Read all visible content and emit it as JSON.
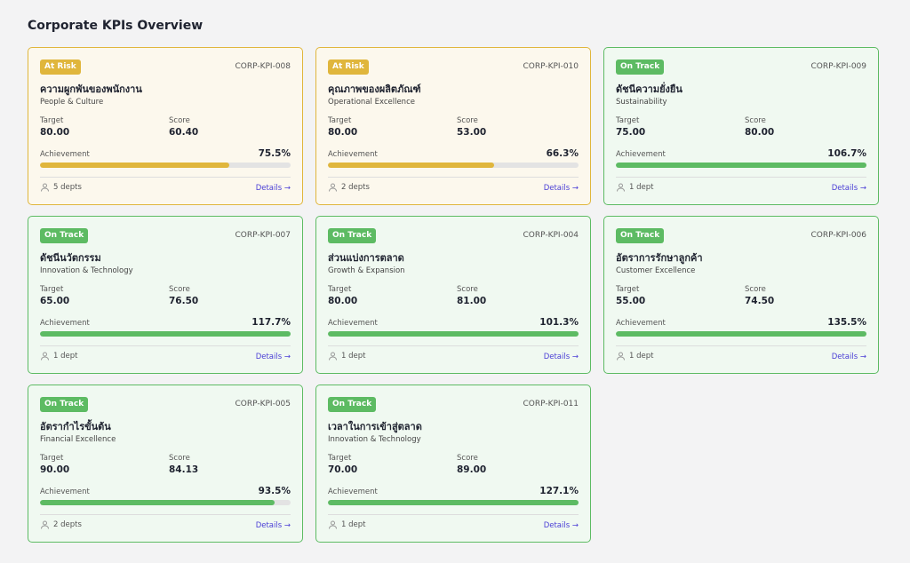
{
  "header": {
    "title": "Corporate KPIs Overview"
  },
  "labels": {
    "target": "Target",
    "score": "Score",
    "achievement": "Achievement",
    "details": "Details →"
  },
  "cards": [
    {
      "status": "At Risk",
      "color": "#e0b63c",
      "code": "CORP-KPI-008",
      "name": "ความผูกพันของพนักงาน",
      "category": "People & Culture",
      "target": "80.00",
      "score": "60.40",
      "achievement": {
        "value": 75.5,
        "label": "75.5%"
      },
      "departments": "5 depts"
    },
    {
      "status": "At Risk",
      "color": "#e0b63c",
      "code": "CORP-KPI-010",
      "name": "คุณภาพของผลิตภัณฑ์",
      "category": "Operational Excellence",
      "target": "80.00",
      "score": "53.00",
      "achievement": {
        "value": 66.3,
        "label": "66.3%"
      },
      "departments": "2 depts"
    },
    {
      "status": "On Track",
      "color": "#5dbb63",
      "code": "CORP-KPI-009",
      "name": "ดัชนีความยั่งยืน",
      "category": "Sustainability",
      "target": "75.00",
      "score": "80.00",
      "achievement": {
        "value": 106.7,
        "label": "106.7%"
      },
      "departments": "1 dept"
    },
    {
      "status": "On Track",
      "color": "#5dbb63",
      "code": "CORP-KPI-007",
      "name": "ดัชนีนวัตกรรม",
      "category": "Innovation & Technology",
      "target": "65.00",
      "score": "76.50",
      "achievement": {
        "value": 117.7,
        "label": "117.7%"
      },
      "departments": "1 dept"
    },
    {
      "status": "On Track",
      "color": "#5dbb63",
      "code": "CORP-KPI-004",
      "name": "ส่วนแบ่งการตลาด",
      "category": "Growth & Expansion",
      "target": "80.00",
      "score": "81.00",
      "achievement": {
        "value": 101.3,
        "label": "101.3%"
      },
      "departments": "1 dept"
    },
    {
      "status": "On Track",
      "color": "#5dbb63",
      "code": "CORP-KPI-006",
      "name": "อัตราการรักษาลูกค้า",
      "category": "Customer Excellence",
      "target": "55.00",
      "score": "74.50",
      "achievement": {
        "value": 135.5,
        "label": "135.5%"
      },
      "departments": "1 dept"
    },
    {
      "status": "On Track",
      "color": "#5dbb63",
      "code": "CORP-KPI-005",
      "name": "อัตรากำไรขั้นต้น",
      "category": "Financial Excellence",
      "target": "90.00",
      "score": "84.13",
      "achievement": {
        "value": 93.5,
        "label": "93.5%"
      },
      "departments": "2 depts"
    },
    {
      "status": "On Track",
      "color": "#5dbb63",
      "code": "CORP-KPI-011",
      "name": "เวลาในการเข้าสู่ตลาด",
      "category": "Innovation & Technology",
      "target": "70.00",
      "score": "89.00",
      "achievement": {
        "value": 127.1,
        "label": "127.1%"
      },
      "departments": "1 dept"
    }
  ]
}
